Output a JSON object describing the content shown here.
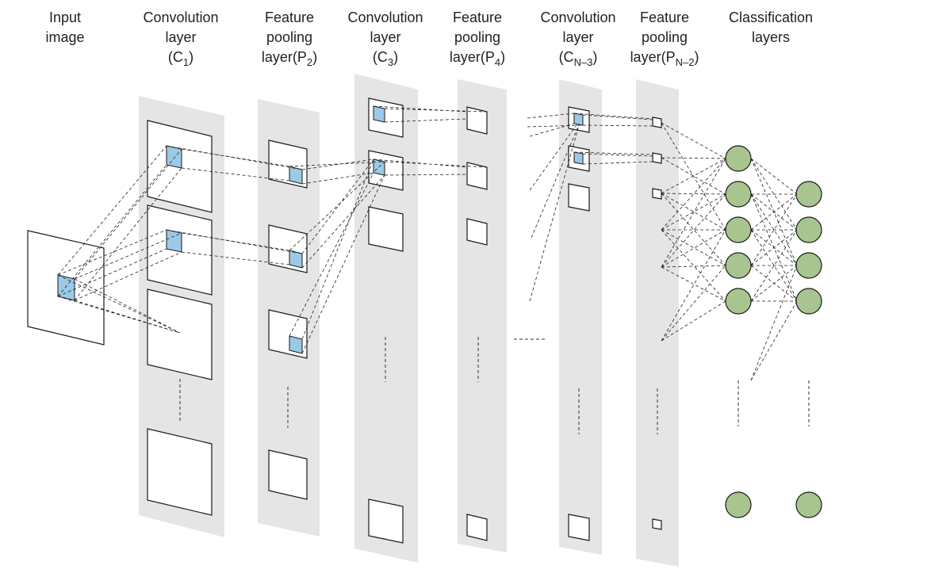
{
  "headers": {
    "input": {
      "line1": "Input",
      "line2": "image"
    },
    "c1": {
      "line1": "Convolution",
      "line2": "layer",
      "open": "(C",
      "sub": "1",
      "close": ")"
    },
    "p2": {
      "line1": "Feature",
      "line2": "pooling",
      "open": "layer(P",
      "sub": "2",
      "close": ")"
    },
    "c3": {
      "line1": "Convolution",
      "line2": "layer",
      "open": "(C",
      "sub": "3",
      "close": ")"
    },
    "p4": {
      "line1": "Feature",
      "line2": "pooling",
      "open": "layer(P",
      "sub": "4",
      "close": ")"
    },
    "cn3": {
      "line1": "Convolution",
      "line2": "layer",
      "open": "(C",
      "sub": "N–3",
      "close": ")"
    },
    "pn2": {
      "line1": "Feature",
      "line2": "pooling",
      "open": "layer(P",
      "sub": "N–2",
      "close": ")"
    },
    "classification": {
      "line1": "Classification",
      "line2": "layers"
    }
  },
  "colors": {
    "sheet": "#e5e5e5",
    "kernel": "#9ccae6",
    "neuron": "#a9c58f",
    "line": "#222222"
  }
}
